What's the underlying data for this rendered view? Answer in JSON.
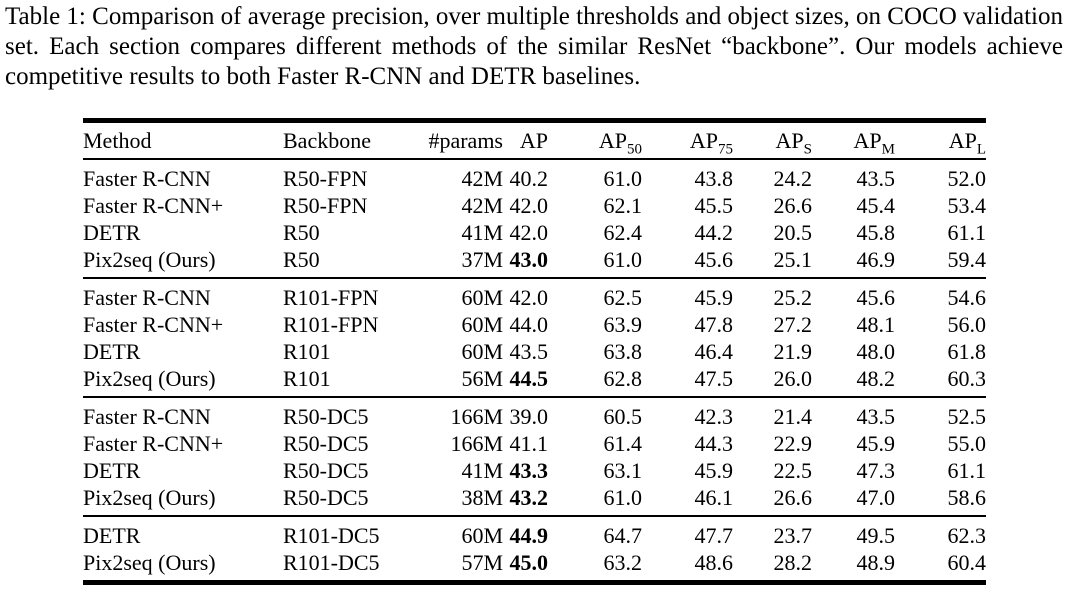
{
  "caption": "Table 1: Comparison of average precision, over multiple thresholds and object sizes, on COCO validation set. Each section compares different methods of the similar ResNet “backbone”. Our models achieve competitive results to both Faster R-CNN and DETR baselines.",
  "colors": {
    "text": "#000000",
    "background": "#ffffff",
    "rule": "#000000"
  },
  "table": {
    "columns": [
      {
        "key": "method",
        "text": "Method"
      },
      {
        "key": "backbone",
        "text": "Backbone"
      },
      {
        "key": "params",
        "text": "#params"
      },
      {
        "key": "ap",
        "text": "AP"
      },
      {
        "key": "ap50",
        "text": "AP",
        "sub": "50"
      },
      {
        "key": "ap75",
        "text": "AP",
        "sub": "75"
      },
      {
        "key": "aps",
        "text": "AP",
        "sub": "S"
      },
      {
        "key": "apm",
        "text": "AP",
        "sub": "M"
      },
      {
        "key": "apl",
        "text": "AP",
        "sub": "L"
      }
    ],
    "sections": [
      {
        "rows": [
          {
            "cells": [
              "Faster R-CNN",
              "R50-FPN",
              "42M",
              "40.2",
              "61.0",
              "43.8",
              "24.2",
              "43.5",
              "52.0"
            ],
            "bold_cols": []
          },
          {
            "cells": [
              "Faster R-CNN+",
              "R50-FPN",
              "42M",
              "42.0",
              "62.1",
              "45.5",
              "26.6",
              "45.4",
              "53.4"
            ],
            "bold_cols": []
          },
          {
            "cells": [
              "DETR",
              "R50",
              "41M",
              "42.0",
              "62.4",
              "44.2",
              "20.5",
              "45.8",
              "61.1"
            ],
            "bold_cols": []
          },
          {
            "cells": [
              "Pix2seq (Ours)",
              "R50",
              "37M",
              "43.0",
              "61.0",
              "45.6",
              "25.1",
              "46.9",
              "59.4"
            ],
            "bold_cols": [
              3
            ]
          }
        ]
      },
      {
        "rows": [
          {
            "cells": [
              "Faster R-CNN",
              "R101-FPN",
              "60M",
              "42.0",
              "62.5",
              "45.9",
              "25.2",
              "45.6",
              "54.6"
            ],
            "bold_cols": []
          },
          {
            "cells": [
              "Faster R-CNN+",
              "R101-FPN",
              "60M",
              "44.0",
              "63.9",
              "47.8",
              "27.2",
              "48.1",
              "56.0"
            ],
            "bold_cols": []
          },
          {
            "cells": [
              "DETR",
              "R101",
              "60M",
              "43.5",
              "63.8",
              "46.4",
              "21.9",
              "48.0",
              "61.8"
            ],
            "bold_cols": []
          },
          {
            "cells": [
              "Pix2seq (Ours)",
              "R101",
              "56M",
              "44.5",
              "62.8",
              "47.5",
              "26.0",
              "48.2",
              "60.3"
            ],
            "bold_cols": [
              3
            ]
          }
        ]
      },
      {
        "rows": [
          {
            "cells": [
              "Faster R-CNN",
              "R50-DC5",
              "166M",
              "39.0",
              "60.5",
              "42.3",
              "21.4",
              "43.5",
              "52.5"
            ],
            "bold_cols": []
          },
          {
            "cells": [
              "Faster R-CNN+",
              "R50-DC5",
              "166M",
              "41.1",
              "61.4",
              "44.3",
              "22.9",
              "45.9",
              "55.0"
            ],
            "bold_cols": []
          },
          {
            "cells": [
              "DETR",
              "R50-DC5",
              "41M",
              "43.3",
              "63.1",
              "45.9",
              "22.5",
              "47.3",
              "61.1"
            ],
            "bold_cols": [
              3
            ]
          },
          {
            "cells": [
              "Pix2seq (Ours)",
              "R50-DC5",
              "38M",
              "43.2",
              "61.0",
              "46.1",
              "26.6",
              "47.0",
              "58.6"
            ],
            "bold_cols": [
              3
            ]
          }
        ]
      },
      {
        "rows": [
          {
            "cells": [
              "DETR",
              "R101-DC5",
              "60M",
              "44.9",
              "64.7",
              "47.7",
              "23.7",
              "49.5",
              "62.3"
            ],
            "bold_cols": [
              3
            ]
          },
          {
            "cells": [
              "Pix2seq (Ours)",
              "R101-DC5",
              "57M",
              "45.0",
              "63.2",
              "48.6",
              "28.2",
              "48.9",
              "60.4"
            ],
            "bold_cols": [
              3
            ]
          }
        ]
      }
    ]
  }
}
